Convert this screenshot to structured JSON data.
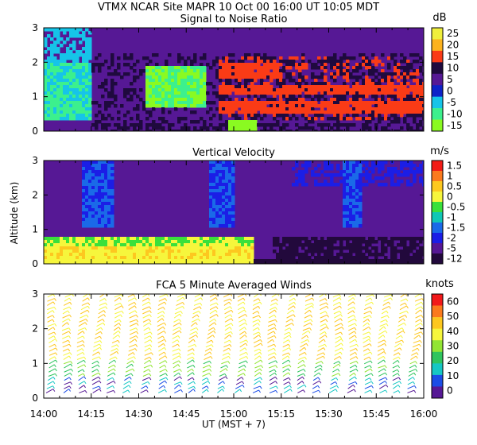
{
  "header": {
    "text": "VTMX   NCAR Site   MAPR 10 Oct 00   16:00 UT   10:05   MDT"
  },
  "x_axis": {
    "ticks": [
      "14:00",
      "14:15",
      "14:30",
      "14:45",
      "15:00",
      "15:15",
      "15:30",
      "15:45",
      "16:00"
    ],
    "label": "UT   (MST + 7)"
  },
  "y_axis": {
    "label": "Altitude (km)"
  },
  "chart_data": [
    {
      "type": "heatmap",
      "title": "Signal to Noise Ratio",
      "units": "dB",
      "xrange": [
        "14:00",
        "16:00"
      ],
      "ylim": [
        0,
        3
      ],
      "yticks": [
        "0",
        "1",
        "2",
        "3"
      ],
      "colorbar": {
        "labels": [
          "25",
          "20",
          "15",
          "10",
          "5",
          "0",
          "-5",
          "-10",
          "-15"
        ],
        "colors": [
          "#f0ef3c",
          "#fcb21d",
          "#fa3b16",
          "#1f0a3e",
          "#561895",
          "#0d22c8",
          "#16c4e8",
          "#3cf08d",
          "#8afa21"
        ]
      }
    },
    {
      "type": "heatmap",
      "title": "Vertical Velocity",
      "units": "m/s",
      "xrange": [
        "14:00",
        "16:00"
      ],
      "ylim": [
        0,
        3
      ],
      "yticks": [
        "0",
        "1",
        "2",
        "3"
      ],
      "colorbar": {
        "labels": [
          "1.5",
          "1",
          "0.5",
          "0",
          "-0.5",
          "-1",
          "-1.5",
          "-2",
          "-5",
          "-12"
        ],
        "colors": [
          "#f21b16",
          "#fb7a1d",
          "#fdc81f",
          "#f6f63c",
          "#3ae03b",
          "#10c7b5",
          "#1a6ae8",
          "#1b1ee6",
          "#561895",
          "#22093c"
        ]
      }
    },
    {
      "type": "scatter",
      "title": "FCA 5 Minute Averaged Winds",
      "units": "knots",
      "xrange": [
        "14:00",
        "16:00"
      ],
      "ylim": [
        0,
        3
      ],
      "yticks": [
        "0",
        "1",
        "2",
        "3"
      ],
      "colorbar": {
        "labels": [
          "60",
          "50",
          "40",
          "30",
          "20",
          "10",
          "0"
        ],
        "colors": [
          "#f2191a",
          "#fb7a1d",
          "#fdc71f",
          "#f6f63c",
          "#92e534",
          "#2fc55e",
          "#16c7c4",
          "#1b4de6",
          "#561895"
        ]
      }
    }
  ]
}
